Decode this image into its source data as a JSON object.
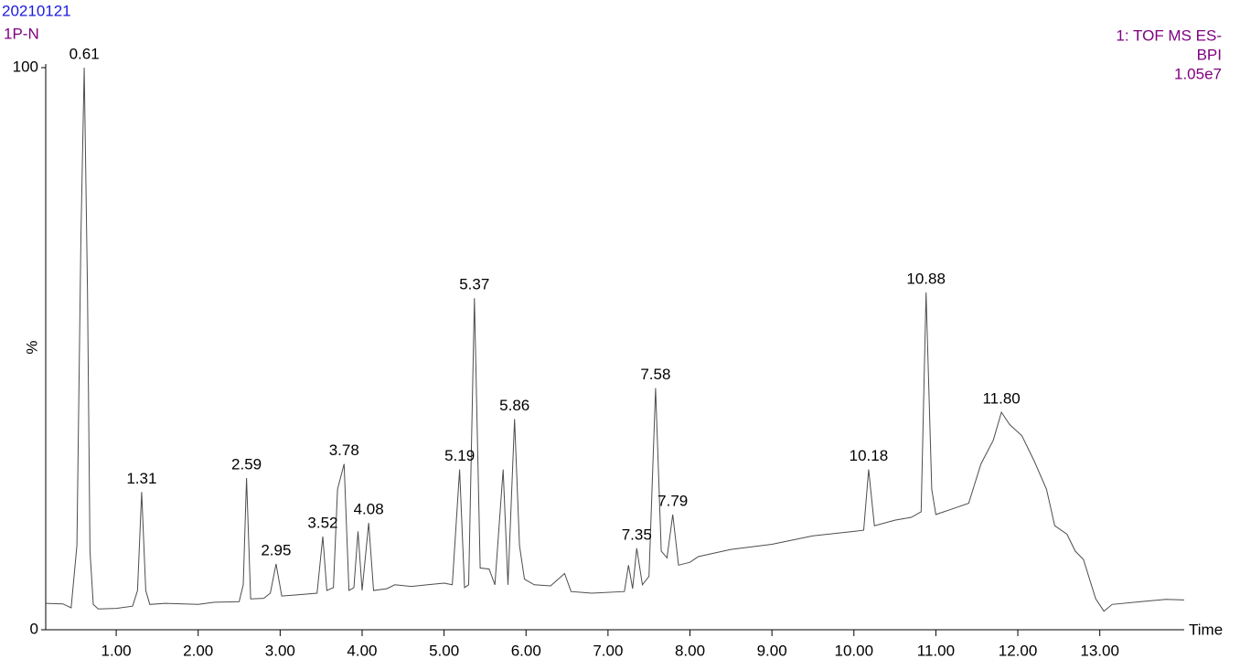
{
  "chart_data": {
    "type": "line",
    "title": "20210121",
    "subtitle": "1P-N",
    "detector": [
      "1: TOF MS ES-",
      "BPI",
      "1.05e7"
    ],
    "y_label": "%",
    "x_label": "Time",
    "xlim": [
      0.14,
      14.03
    ],
    "ylim": [
      0,
      100
    ],
    "xticks": [
      {
        "value": 1,
        "label": "1.00"
      },
      {
        "value": 2,
        "label": "2.00"
      },
      {
        "value": 3,
        "label": "3.00"
      },
      {
        "value": 4,
        "label": "4.00"
      },
      {
        "value": 5,
        "label": "5.00"
      },
      {
        "value": 6,
        "label": "6.00"
      },
      {
        "value": 7,
        "label": "7.00"
      },
      {
        "value": 8,
        "label": "8.00"
      },
      {
        "value": 9,
        "label": "9.00"
      },
      {
        "value": 10,
        "label": "10.00"
      },
      {
        "value": 11,
        "label": "11.00"
      },
      {
        "value": 12,
        "label": "12.00"
      },
      {
        "value": 13,
        "label": "13.00"
      }
    ],
    "yticks": [
      0,
      100
    ],
    "series": [
      {
        "color": "#4d4d4d",
        "x": [
          0.14,
          0.35,
          0.45,
          0.52,
          0.57,
          0.61,
          0.65,
          0.68,
          0.72,
          0.78,
          1.0,
          1.2,
          1.26,
          1.31,
          1.36,
          1.41,
          1.6,
          2.0,
          2.2,
          2.5,
          2.55,
          2.59,
          2.64,
          2.8,
          2.88,
          2.95,
          3.02,
          3.2,
          3.45,
          3.52,
          3.57,
          3.65,
          3.7,
          3.78,
          3.84,
          3.9,
          3.95,
          4.0,
          4.08,
          4.14,
          4.3,
          4.4,
          4.6,
          4.8,
          5.0,
          5.1,
          5.19,
          5.25,
          5.3,
          5.37,
          5.44,
          5.55,
          5.62,
          5.72,
          5.78,
          5.86,
          5.92,
          5.98,
          6.1,
          6.3,
          6.47,
          6.55,
          6.8,
          7.2,
          7.25,
          7.3,
          7.35,
          7.42,
          7.5,
          7.58,
          7.65,
          7.72,
          7.79,
          7.86,
          8.0,
          8.1,
          8.5,
          9.0,
          9.5,
          10.0,
          10.12,
          10.18,
          10.25,
          10.5,
          10.7,
          10.82,
          10.88,
          10.95,
          11.0,
          11.2,
          11.4,
          11.55,
          11.7,
          11.8,
          11.9,
          12.05,
          12.2,
          12.35,
          12.45,
          12.6,
          12.7,
          12.8,
          12.95,
          13.05,
          13.15,
          13.5,
          13.8,
          14.03
        ],
        "y": [
          4.7,
          4.6,
          3.9,
          15,
          70,
          100,
          60,
          14,
          4.5,
          3.7,
          3.8,
          4.2,
          7,
          24.5,
          7,
          4.5,
          4.7,
          4.5,
          4.9,
          5.0,
          8,
          27,
          5.5,
          5.6,
          6.5,
          11.7,
          6,
          6.2,
          6.5,
          16.6,
          7,
          7.5,
          25,
          29.5,
          7,
          7.5,
          17.5,
          7,
          19,
          7,
          7.3,
          8,
          7.7,
          8,
          8.3,
          8,
          28.5,
          7.5,
          8,
          59,
          11,
          10.8,
          8,
          28.5,
          8,
          37.5,
          15,
          9,
          8,
          7.8,
          10,
          6.8,
          6.5,
          6.8,
          11.5,
          7.3,
          14.5,
          8,
          9.5,
          43,
          14,
          12.8,
          20.5,
          11.5,
          12,
          13,
          14.3,
          15.2,
          16.7,
          17.5,
          17.7,
          28.5,
          18.5,
          19.5,
          20,
          21,
          60,
          25,
          20.5,
          21.5,
          22.5,
          29.5,
          33.7,
          38.7,
          36.5,
          34.5,
          30,
          25,
          18.5,
          17,
          14,
          12.5,
          5.5,
          3.3,
          4.5,
          5,
          5.4,
          5.3
        ]
      }
    ],
    "annotations": [
      {
        "label": "0.61",
        "x": 0.61,
        "y": 100
      },
      {
        "label": "1.31",
        "x": 1.31,
        "y": 24.5
      },
      {
        "label": "2.59",
        "x": 2.59,
        "y": 27
      },
      {
        "label": "2.95",
        "x": 2.95,
        "y": 11.7
      },
      {
        "label": "3.52",
        "x": 3.52,
        "y": 16.6
      },
      {
        "label": "3.78",
        "x": 3.78,
        "y": 29.5
      },
      {
        "label": "4.08",
        "x": 4.08,
        "y": 19
      },
      {
        "label": "5.19",
        "x": 5.19,
        "y": 28.5
      },
      {
        "label": "5.37",
        "x": 5.37,
        "y": 59
      },
      {
        "label": "5.86",
        "x": 5.86,
        "y": 37.5
      },
      {
        "label": "7.35",
        "x": 7.35,
        "y": 14.5
      },
      {
        "label": "7.58",
        "x": 7.58,
        "y": 43
      },
      {
        "label": "7.79",
        "x": 7.79,
        "y": 20.5
      },
      {
        "label": "10.18",
        "x": 10.18,
        "y": 28.5
      },
      {
        "label": "10.88",
        "x": 10.88,
        "y": 60
      },
      {
        "label": "11.80",
        "x": 11.8,
        "y": 38.7
      }
    ]
  }
}
